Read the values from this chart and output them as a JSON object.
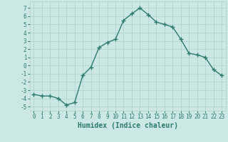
{
  "x": [
    0,
    1,
    2,
    3,
    4,
    5,
    6,
    7,
    8,
    9,
    10,
    11,
    12,
    13,
    14,
    15,
    16,
    17,
    18,
    19,
    20,
    21,
    22,
    23
  ],
  "y": [
    -3.5,
    -3.7,
    -3.7,
    -4.0,
    -4.8,
    -4.5,
    -1.2,
    -0.2,
    2.2,
    2.8,
    3.2,
    5.5,
    6.3,
    7.0,
    6.2,
    5.3,
    5.0,
    4.7,
    3.2,
    1.5,
    1.3,
    1.0,
    -0.5,
    -1.2
  ],
  "line_color": "#2d7a6e",
  "marker": "+",
  "marker_size": 4,
  "marker_lw": 1.0,
  "bg_color": "#cce8e4",
  "grid_color": "#aed0cb",
  "xlabel": "Humidex (Indice chaleur)",
  "ylim": [
    -5.5,
    7.8
  ],
  "xlim": [
    -0.5,
    23.5
  ],
  "yticks": [
    -5,
    -4,
    -3,
    -2,
    -1,
    0,
    1,
    2,
    3,
    4,
    5,
    6,
    7
  ],
  "xticks": [
    0,
    1,
    2,
    3,
    4,
    5,
    6,
    7,
    8,
    9,
    10,
    11,
    12,
    13,
    14,
    15,
    16,
    17,
    18,
    19,
    20,
    21,
    22,
    23
  ],
  "tick_color": "#2d7a6e",
  "linewidth": 1.0,
  "tick_fontsize": 5.5,
  "xlabel_fontsize": 7.0
}
